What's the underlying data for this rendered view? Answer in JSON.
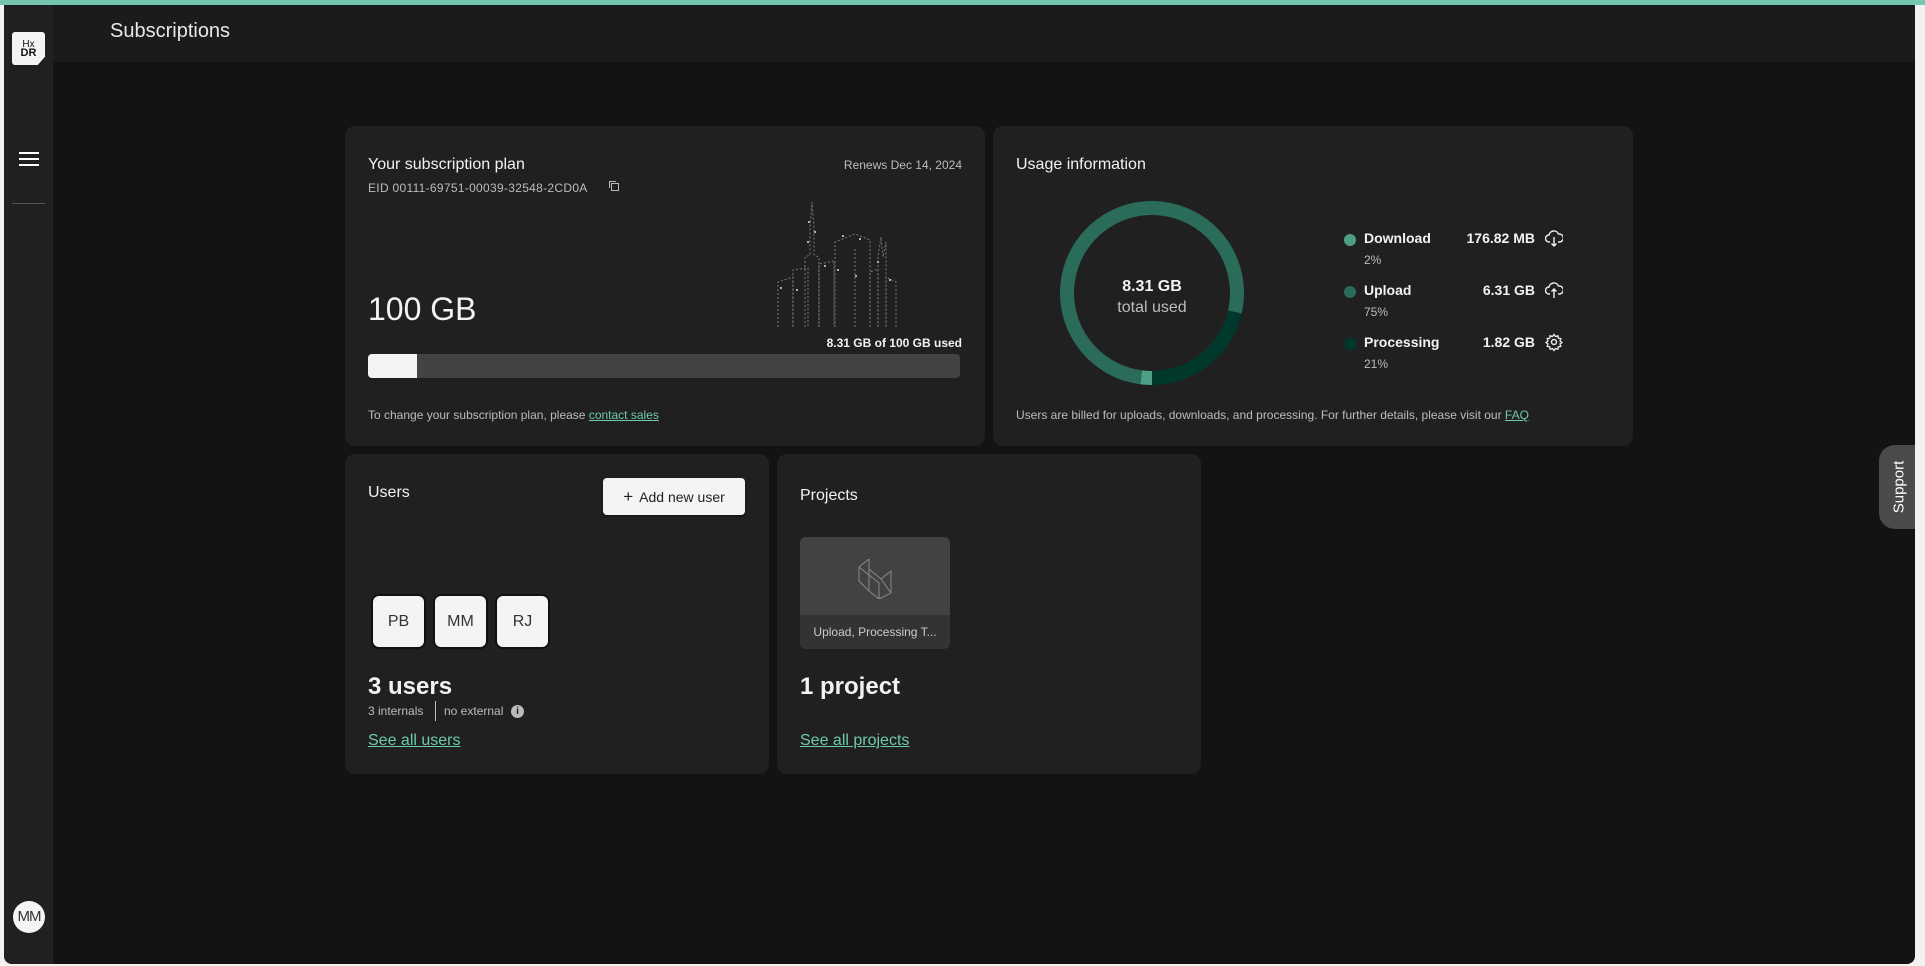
{
  "colors": {
    "accent": "#74c6ae",
    "download": "#4e9f86",
    "upload": "#2a6b59",
    "processing": "#00392b"
  },
  "app": {
    "logo": "HxDR",
    "logo_top": "Hx",
    "logo_bottom": "DR",
    "user_initials": "MM",
    "support_label": "Support"
  },
  "header": {
    "title": "Subscriptions"
  },
  "subscription": {
    "title": "Your subscription plan",
    "eid": "EID 00111-69751-00039-32548-2CD0A",
    "renews": "Renews Dec 14, 2024",
    "capacity": "100 GB",
    "used_text": "8.31 GB of 100 GB used",
    "used_fraction": 0.0831,
    "footer_text": "To change your subscription plan, please ",
    "footer_link": "contact sales"
  },
  "usage": {
    "title": "Usage information",
    "total": "8.31 GB",
    "total_label": "total used",
    "items": [
      {
        "name": "Download",
        "value": "176.82 MB",
        "percent": "2%",
        "pct": 2,
        "icon": "cloud-download-icon"
      },
      {
        "name": "Upload",
        "value": "6.31 GB",
        "percent": "75%",
        "pct": 75,
        "icon": "cloud-upload-icon"
      },
      {
        "name": "Processing",
        "value": "1.82 GB",
        "percent": "21%",
        "pct": 21,
        "icon": "gear-icon"
      }
    ],
    "footer_text": "Users are billed for uploads, downloads, and processing. For further details, please visit our ",
    "footer_link": "FAQ"
  },
  "users": {
    "title": "Users",
    "add_button": "Add new user",
    "initials": [
      "PB",
      "MM",
      "RJ"
    ],
    "count": "3 users",
    "internals": "3 internals",
    "external": "no external",
    "see_all": "See all users"
  },
  "projects": {
    "title": "Projects",
    "project_name": "Upload, Processing T...",
    "count": "1 project",
    "see_all": "See all projects"
  }
}
